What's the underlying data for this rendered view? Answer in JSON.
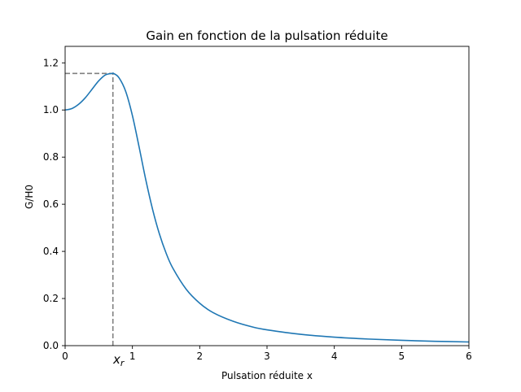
{
  "chart_data": {
    "type": "line",
    "title": "Gain en fonction de la pulsation réduite",
    "xlabel": "Pulsation réduite x",
    "ylabel": "G/H0",
    "xlim": [
      0,
      6
    ],
    "ylim": [
      0,
      1.27
    ],
    "x_ticks": [
      0,
      1,
      2,
      3,
      4,
      5,
      6
    ],
    "y_ticks": [
      0.0,
      0.2,
      0.4,
      0.6,
      0.8,
      1.0,
      1.2
    ],
    "x_tick_labels": [
      "0",
      "1",
      "2",
      "3",
      "4",
      "5",
      "6"
    ],
    "y_tick_labels": [
      "0.0",
      "0.2",
      "0.4",
      "0.6",
      "0.8",
      "1.0",
      "1.2"
    ],
    "grid": false,
    "series": [
      {
        "color": "#1f77b4",
        "x": [
          0,
          0.1,
          0.2,
          0.3,
          0.4,
          0.5,
          0.6,
          0.7,
          0.72,
          0.8,
          0.9,
          1.0,
          1.1,
          1.2,
          1.3,
          1.4,
          1.5,
          1.6,
          1.8,
          2.0,
          2.2,
          2.5,
          2.8,
          3.0,
          3.5,
          4.0,
          4.5,
          5.0,
          5.5,
          6.0
        ],
        "y": [
          1.0,
          1.006,
          1.024,
          1.052,
          1.088,
          1.124,
          1.149,
          1.155,
          1.155,
          1.137,
          1.079,
          0.976,
          0.842,
          0.702,
          0.578,
          0.475,
          0.393,
          0.329,
          0.239,
          0.18,
          0.14,
          0.103,
          0.078,
          0.067,
          0.048,
          0.036,
          0.028,
          0.0225,
          0.0185,
          0.0155
        ]
      }
    ],
    "annotations": {
      "resonance_x": 0.71,
      "resonance_y": 1.155,
      "resonance_label_base": "x",
      "resonance_label_sub": "r",
      "guide_color": "#808080"
    }
  }
}
